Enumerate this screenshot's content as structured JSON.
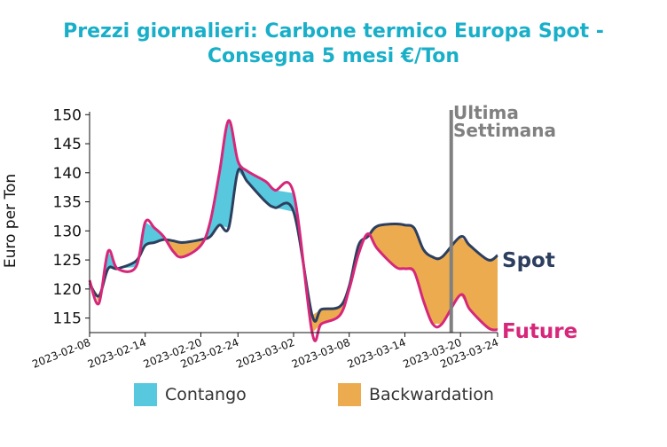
{
  "title": {
    "line1": "Prezzi giornalieri: Carbone termico Europa Spot -",
    "line2": "Consegna 5 mesi €/Ton"
  },
  "chart_data": {
    "type": "line",
    "ylabel": "Euro per Ton",
    "ylim": [
      112.5,
      150.5
    ],
    "yticks": [
      115,
      120,
      125,
      130,
      135,
      140,
      145,
      150
    ],
    "xlim": [
      "2023-02-08",
      "2023-03-24"
    ],
    "xticks": [
      "2023-02-08",
      "2023-02-14",
      "2023-02-20",
      "2023-02-24",
      "2023-03-02",
      "2023-03-08",
      "2023-03-14",
      "2023-03-20",
      "2023-03-24"
    ],
    "x": [
      "2023-02-08",
      "2023-02-09",
      "2023-02-10",
      "2023-02-11",
      "2023-02-13",
      "2023-02-14",
      "2023-02-15",
      "2023-02-16",
      "2023-02-17",
      "2023-02-18",
      "2023-02-20",
      "2023-02-21",
      "2023-02-22",
      "2023-02-23",
      "2023-02-24",
      "2023-02-25",
      "2023-02-27",
      "2023-02-28",
      "2023-03-02",
      "2023-03-04",
      "2023-03-05",
      "2023-03-07",
      "2023-03-08",
      "2023-03-09",
      "2023-03-10",
      "2023-03-11",
      "2023-03-13",
      "2023-03-14",
      "2023-03-15",
      "2023-03-16",
      "2023-03-17",
      "2023-03-18",
      "2023-03-20",
      "2023-03-21",
      "2023-03-23",
      "2023-03-24"
    ],
    "series": [
      {
        "name": "Spot",
        "color": "#2d3f5f",
        "values": [
          121.0,
          118.8,
          123.5,
          123.5,
          124.8,
          127.5,
          128.0,
          128.5,
          128.3,
          128.0,
          128.5,
          129.0,
          131.0,
          130.5,
          140.3,
          138.5,
          135.0,
          134.0,
          133.3,
          115.5,
          116.5,
          117.0,
          120.5,
          127.5,
          129.0,
          130.8,
          131.2,
          131.0,
          130.5,
          126.8,
          125.5,
          125.5,
          129.0,
          127.5,
          125.0,
          125.8
        ]
      },
      {
        "name": "Future",
        "color": "#d6277a",
        "values": [
          121.5,
          117.5,
          126.5,
          123.5,
          123.8,
          131.5,
          130.5,
          129.0,
          126.5,
          125.5,
          127.5,
          131.5,
          140.0,
          149.0,
          142.0,
          140.3,
          138.5,
          137.0,
          136.5,
          112.5,
          114.0,
          115.5,
          120.0,
          126.0,
          129.5,
          127.0,
          123.8,
          123.5,
          123.0,
          118.0,
          114.0,
          114.0,
          119.0,
          116.5,
          113.3,
          113.0
        ]
      }
    ],
    "fill": {
      "contango_color": "#57c8dd",
      "backwardation_color": "#ebab4e",
      "rule": "Contango where Future > Spot, Backwardation where Spot > Future"
    },
    "vline": {
      "date": "2023-03-19",
      "color": "#808080",
      "label_line1": "Ultima",
      "label_line2": "Settimana"
    },
    "legend": {
      "placement": "bottom",
      "items": [
        {
          "label": "Contango",
          "color": "#57c8dd"
        },
        {
          "label": "Backwardation",
          "color": "#ebab4e"
        }
      ]
    },
    "grid": false
  }
}
